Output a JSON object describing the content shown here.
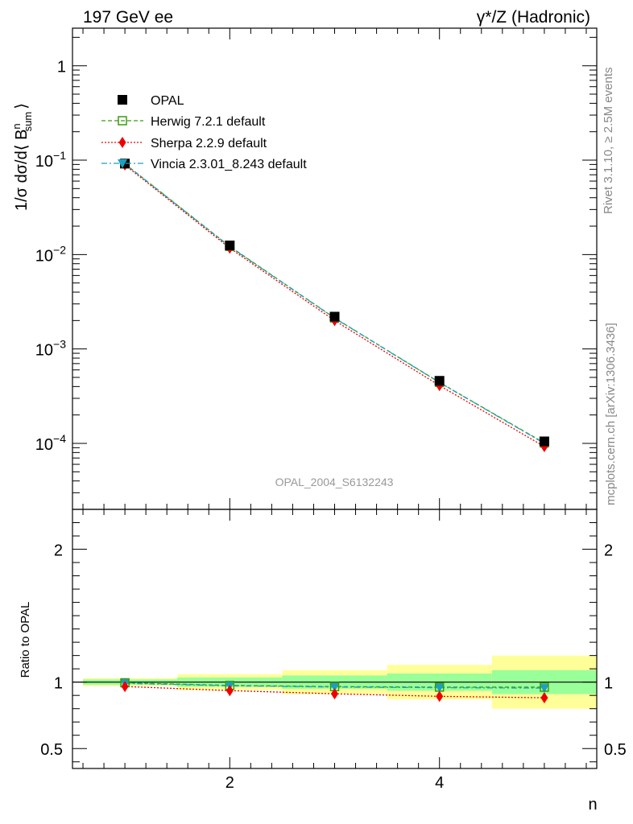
{
  "header": {
    "left": "197 GeV ee",
    "right": "γ*/Z (Hadronic)"
  },
  "side_labels": {
    "rivet": "Rivet 3.1.10, ≥ 2.5M events",
    "mcplots": "mcplots.cern.ch [arXiv:1306.3436]"
  },
  "watermark": "OPAL_2004_S6132243",
  "colors": {
    "opal": "#000000",
    "herwig": "#3a9a10",
    "sherpa": "#ee0000",
    "vincia": "#1aa0c0",
    "band_yellow": "#ffff99",
    "band_green": "#99ff99"
  },
  "chart_data": [
    {
      "type": "scatter",
      "panel": "main",
      "yscale": "log",
      "ylabel": "1/σ dσ/d⟨ B",
      "ylabel_sup": "n",
      "ylabel_sub": "sum",
      "ylabel_end": "⟩",
      "xlim": [
        0.5,
        5.5
      ],
      "ylim": [
        2e-05,
        2.5
      ],
      "y_tick_labels": [
        {
          "value": 1,
          "base": "1",
          "exp": ""
        },
        {
          "value": 0.1,
          "base": "10",
          "exp": "−1"
        },
        {
          "value": 0.01,
          "base": "10",
          "exp": "−2"
        },
        {
          "value": 0.001,
          "base": "10",
          "exp": "−3"
        },
        {
          "value": 0.0001,
          "base": "10",
          "exp": "−4"
        }
      ],
      "x": [
        1,
        2,
        3,
        4,
        5
      ],
      "series": [
        {
          "name": "OPAL",
          "key": "opal",
          "marker": "square-filled",
          "values": [
            0.092,
            0.0125,
            0.0022,
            0.00046,
            0.000105
          ]
        },
        {
          "name": "Herwig 7.2.1 default",
          "key": "herwig",
          "marker": "square-open",
          "line": "dashed",
          "values": [
            0.0915,
            0.0122,
            0.00213,
            0.000443,
            0.000101
          ]
        },
        {
          "name": "Sherpa 2.2.9 default",
          "key": "sherpa",
          "marker": "diamond",
          "line": "dotted",
          "values": [
            0.0889,
            0.0117,
            0.002,
            0.00041,
            9.25e-05
          ]
        },
        {
          "name": "Vincia 2.3.01_8.243 default",
          "key": "vincia",
          "marker": "triangle-down",
          "line": "dashdot",
          "values": [
            0.0912,
            0.0121,
            0.00212,
            0.000441,
            0.0001
          ]
        }
      ]
    },
    {
      "type": "line",
      "panel": "ratio",
      "ylabel": "Ratio to OPAL",
      "xlabel": "n",
      "xlim": [
        0.5,
        5.5
      ],
      "ylim": [
        0.35,
        2.3
      ],
      "x_tick_labels": [
        {
          "value": 2,
          "label": "2"
        },
        {
          "value": 4,
          "label": "4"
        }
      ],
      "y_tick_labels": [
        {
          "value": 0.5,
          "label": "0.5"
        },
        {
          "value": 1,
          "label": "1"
        },
        {
          "value": 2,
          "label": "2"
        }
      ],
      "bins": [
        {
          "x0": 0.6,
          "x1": 1.5,
          "green": [
            0.98,
            1.02
          ],
          "yellow": [
            0.97,
            1.03
          ]
        },
        {
          "x0": 1.5,
          "x1": 2.5,
          "green": [
            0.965,
            1.035
          ],
          "yellow": [
            0.94,
            1.06
          ]
        },
        {
          "x0": 2.5,
          "x1": 3.5,
          "green": [
            0.95,
            1.05
          ],
          "yellow": [
            0.91,
            1.09
          ]
        },
        {
          "x0": 3.5,
          "x1": 4.5,
          "green": [
            0.935,
            1.065
          ],
          "yellow": [
            0.87,
            1.13
          ]
        },
        {
          "x0": 4.5,
          "x1": 5.5,
          "green": [
            0.91,
            1.09
          ],
          "yellow": [
            0.8,
            1.2
          ]
        }
      ],
      "x": [
        1,
        2,
        3,
        4,
        5
      ],
      "series": [
        {
          "name": "Herwig 7.2.1 default",
          "key": "herwig",
          "values": [
            0.995,
            0.975,
            0.966,
            0.962,
            0.962
          ]
        },
        {
          "name": "Sherpa 2.2.9 default",
          "key": "sherpa",
          "values": [
            0.967,
            0.936,
            0.912,
            0.893,
            0.882
          ]
        },
        {
          "name": "Vincia 2.3.01_8.243 default",
          "key": "vincia",
          "values": [
            0.991,
            0.972,
            0.963,
            0.958,
            0.955
          ]
        }
      ]
    }
  ]
}
